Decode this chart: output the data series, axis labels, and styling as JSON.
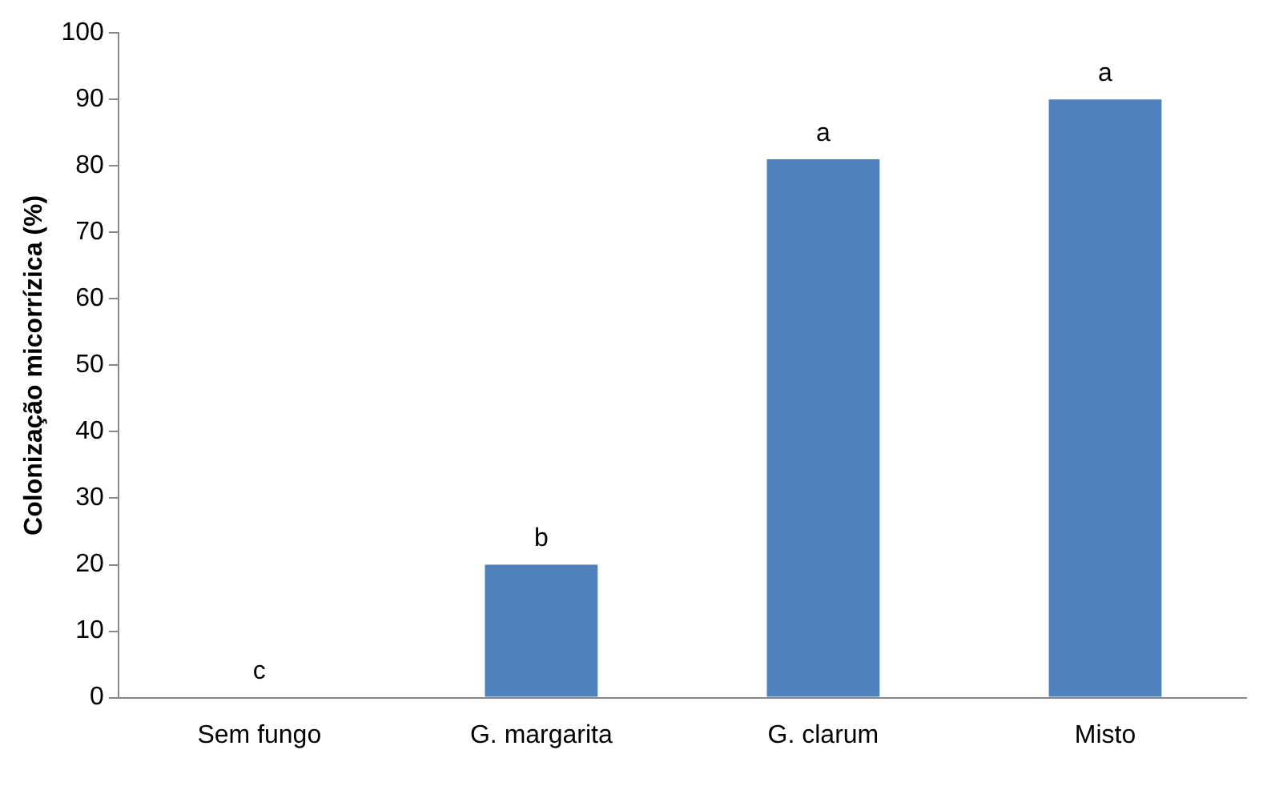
{
  "chart_data": {
    "type": "bar",
    "ylabel": "Colonização micorrízica (%)",
    "categories": [
      "Sem fungo",
      "G. margarita",
      "G. clarum",
      "Misto"
    ],
    "values": [
      0,
      20,
      81,
      90
    ],
    "color": "#4f81bd",
    "ylim": [
      0,
      100
    ],
    "yticks": [
      0,
      10,
      20,
      30,
      40,
      50,
      60,
      70,
      80,
      90,
      100
    ],
    "grid": false,
    "legend": false,
    "annotations": [
      {
        "text": "c",
        "x": "Sem fungo",
        "y": 0
      },
      {
        "text": "b",
        "x": "G. margarita",
        "y": 20
      },
      {
        "text": "a",
        "x": "G. clarum",
        "y": 81
      },
      {
        "text": "a",
        "x": "Misto",
        "y": 90
      }
    ]
  }
}
